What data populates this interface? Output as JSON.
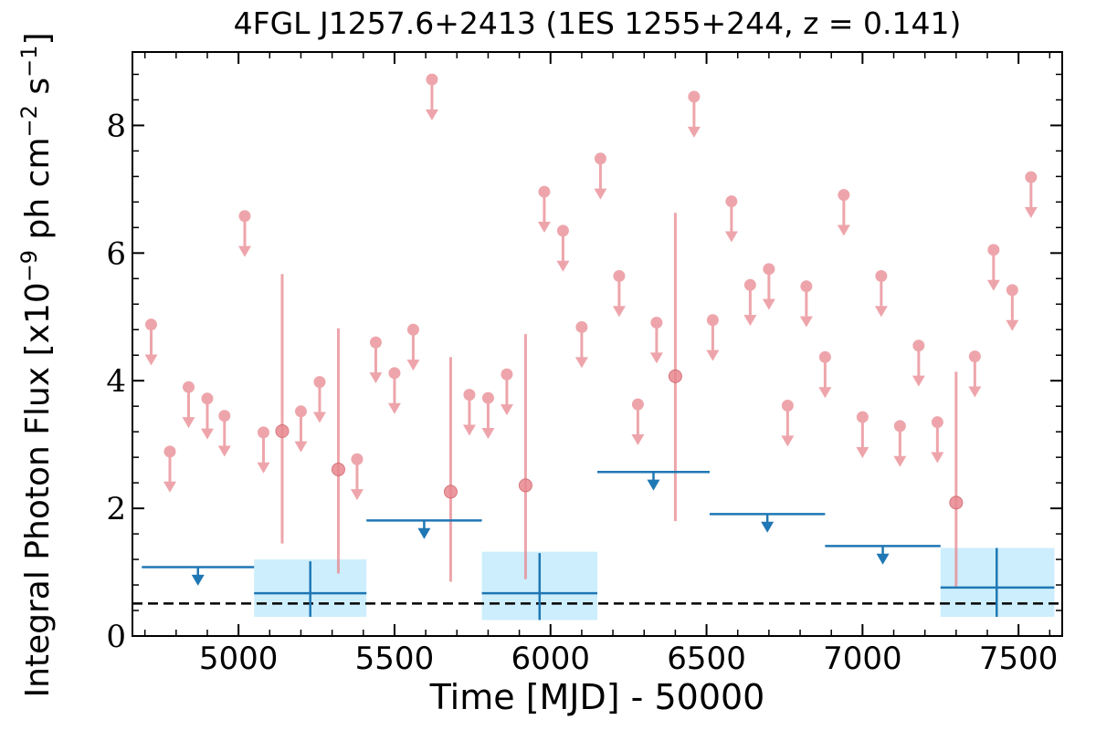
{
  "chart_data": {
    "type": "scatter",
    "title": "4FGL J1257.6+2413 (1ES 1255+244, z = 0.141)",
    "xlabel": "Time [MJD] - 50000",
    "ylabel": {
      "prefix": "Integral Photon Flux [x10",
      "exp1": "−9",
      "mid": " ph cm",
      "exp2": "−2",
      "mid2": " s",
      "exp3": "−1",
      "suffix": "]"
    },
    "xlim": [
      4660,
      7640
    ],
    "ylim": [
      0,
      9.15
    ],
    "xticks": [
      5000,
      5500,
      6000,
      6500,
      7000,
      7500
    ],
    "yticks": [
      0,
      2,
      4,
      6,
      8
    ],
    "reference_line": {
      "y": 0.51,
      "style": "dashed",
      "color": "#000000"
    },
    "colors": {
      "short_bin": "#e8888f",
      "long_bin": "#1f77b4",
      "long_bin_band": "#cdeefc"
    },
    "short_bin_upper_limits": [
      {
        "x": 4720,
        "y": 4.88
      },
      {
        "x": 4780,
        "y": 2.89
      },
      {
        "x": 4840,
        "y": 3.9
      },
      {
        "x": 4900,
        "y": 3.72
      },
      {
        "x": 4955,
        "y": 3.45
      },
      {
        "x": 5020,
        "y": 6.58
      },
      {
        "x": 5080,
        "y": 3.19
      },
      {
        "x": 5200,
        "y": 3.52
      },
      {
        "x": 5260,
        "y": 3.98
      },
      {
        "x": 5380,
        "y": 2.77
      },
      {
        "x": 5440,
        "y": 4.6
      },
      {
        "x": 5500,
        "y": 4.12
      },
      {
        "x": 5560,
        "y": 4.8
      },
      {
        "x": 5620,
        "y": 8.72
      },
      {
        "x": 5740,
        "y": 3.78
      },
      {
        "x": 5800,
        "y": 3.73
      },
      {
        "x": 5860,
        "y": 4.1
      },
      {
        "x": 5980,
        "y": 6.96
      },
      {
        "x": 6040,
        "y": 6.35
      },
      {
        "x": 6100,
        "y": 4.84
      },
      {
        "x": 6160,
        "y": 7.48
      },
      {
        "x": 6220,
        "y": 5.64
      },
      {
        "x": 6280,
        "y": 3.63
      },
      {
        "x": 6340,
        "y": 4.91
      },
      {
        "x": 6460,
        "y": 8.45
      },
      {
        "x": 6520,
        "y": 4.95
      },
      {
        "x": 6580,
        "y": 6.81
      },
      {
        "x": 6640,
        "y": 5.5
      },
      {
        "x": 6700,
        "y": 5.75
      },
      {
        "x": 6760,
        "y": 3.61
      },
      {
        "x": 6820,
        "y": 5.48
      },
      {
        "x": 6880,
        "y": 4.37
      },
      {
        "x": 6940,
        "y": 6.91
      },
      {
        "x": 7000,
        "y": 3.43
      },
      {
        "x": 7060,
        "y": 5.64
      },
      {
        "x": 7120,
        "y": 3.29
      },
      {
        "x": 7180,
        "y": 4.55
      },
      {
        "x": 7240,
        "y": 3.35
      },
      {
        "x": 7360,
        "y": 4.38
      },
      {
        "x": 7420,
        "y": 6.05
      },
      {
        "x": 7480,
        "y": 5.42
      },
      {
        "x": 7540,
        "y": 7.19
      }
    ],
    "short_bin_detections": [
      {
        "x": 5140,
        "y": 3.21,
        "ylow": 1.45,
        "yhigh": 5.67
      },
      {
        "x": 5320,
        "y": 2.61,
        "ylow": 0.98,
        "yhigh": 4.82
      },
      {
        "x": 5680,
        "y": 2.26,
        "ylow": 0.85,
        "yhigh": 4.37
      },
      {
        "x": 5920,
        "y": 2.36,
        "ylow": 0.89,
        "yhigh": 4.73
      },
      {
        "x": 6400,
        "y": 4.07,
        "ylow": 1.8,
        "yhigh": 6.63
      },
      {
        "x": 7300,
        "y": 2.09,
        "ylow": 0.78,
        "yhigh": 4.14
      }
    ],
    "long_bin_upper_limits": [
      {
        "x_start": 4690,
        "x_end": 5050,
        "y": 1.08
      },
      {
        "x_start": 5410,
        "x_end": 5780,
        "y": 1.81
      },
      {
        "x_start": 6150,
        "x_end": 6510,
        "y": 2.57
      },
      {
        "x_start": 6510,
        "x_end": 6880,
        "y": 1.91
      },
      {
        "x_start": 6880,
        "x_end": 7250,
        "y": 1.41
      }
    ],
    "long_bin_detections": [
      {
        "x_start": 5050,
        "x_end": 5410,
        "x": 5230,
        "y": 0.67,
        "ylow": 0.3,
        "yhigh": 1.17,
        "band_low": 0.3,
        "band_high": 1.2
      },
      {
        "x_start": 5780,
        "x_end": 6150,
        "x": 5965,
        "y": 0.67,
        "ylow": 0.25,
        "yhigh": 1.3,
        "band_low": 0.25,
        "band_high": 1.32
      },
      {
        "x_start": 7250,
        "x_end": 7615,
        "x": 7430,
        "y": 0.76,
        "ylow": 0.3,
        "yhigh": 1.38,
        "band_low": 0.3,
        "band_high": 1.38
      }
    ]
  }
}
